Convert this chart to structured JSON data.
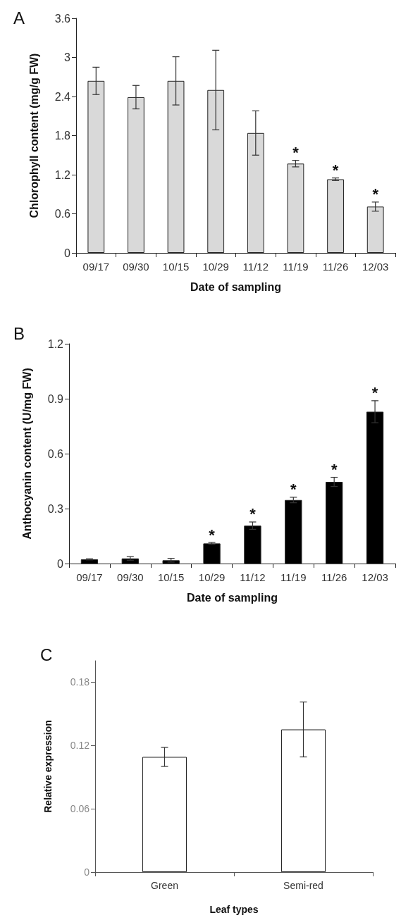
{
  "chart_data": [
    {
      "type": "bar",
      "title": "A",
      "xlabel": "Date of sampling",
      "ylabel": "Chlorophyll content (mg/g FW)",
      "categories": [
        "09/17",
        "09/30",
        "10/15",
        "10/29",
        "11/12",
        "11/19",
        "11/26",
        "12/03"
      ],
      "values": [
        2.64,
        2.39,
        2.64,
        2.5,
        1.84,
        1.37,
        1.13,
        0.71
      ],
      "errors": [
        0.21,
        0.18,
        0.37,
        0.61,
        0.34,
        0.05,
        0.02,
        0.07
      ],
      "color": "#d9d9d9",
      "ylim": [
        0,
        3.6
      ],
      "yticks": [
        0,
        0.6,
        1.2,
        1.8,
        2.4,
        3,
        3.6
      ],
      "grid": false,
      "annotations": [
        {
          "text": "*",
          "x": "11/19",
          "y": 1.42
        },
        {
          "text": "*",
          "x": "11/26",
          "y": 1.15
        },
        {
          "text": "*",
          "x": "12/03",
          "y": 0.78
        }
      ]
    },
    {
      "type": "bar",
      "title": "B",
      "xlabel": "Date of sampling",
      "ylabel": "Anthocyanin content (U/mg FW)",
      "categories": [
        "09/17",
        "09/30",
        "10/15",
        "10/29",
        "11/12",
        "11/19",
        "11/26",
        "12/03"
      ],
      "values": [
        0.023,
        0.028,
        0.018,
        0.11,
        0.207,
        0.347,
        0.446,
        0.829
      ],
      "errors": [
        0.003,
        0.01,
        0.01,
        0.005,
        0.02,
        0.015,
        0.025,
        0.06
      ],
      "color": "#000000",
      "ylim": [
        0,
        1.2
      ],
      "yticks": [
        0,
        0.3,
        0.6,
        0.9,
        1.2
      ],
      "grid": false,
      "annotations": [
        {
          "text": "*",
          "x": "10/29",
          "y": 0.115
        },
        {
          "text": "*",
          "x": "11/12",
          "y": 0.227
        },
        {
          "text": "*",
          "x": "11/19",
          "y": 0.362
        },
        {
          "text": "*",
          "x": "11/26",
          "y": 0.471
        },
        {
          "text": "*",
          "x": "12/03",
          "y": 0.889
        }
      ]
    },
    {
      "type": "bar",
      "title": "C",
      "xlabel": "Leaf types",
      "ylabel": "Relative expression",
      "categories": [
        "Green",
        "Semi-red"
      ],
      "values": [
        0.109,
        0.135
      ],
      "errors": [
        0.009,
        0.026
      ],
      "color": "#ffffff",
      "ylim": [
        0,
        0.2
      ],
      "yticks": [
        0,
        0.06,
        0.12,
        0.18
      ],
      "grid": false
    }
  ]
}
